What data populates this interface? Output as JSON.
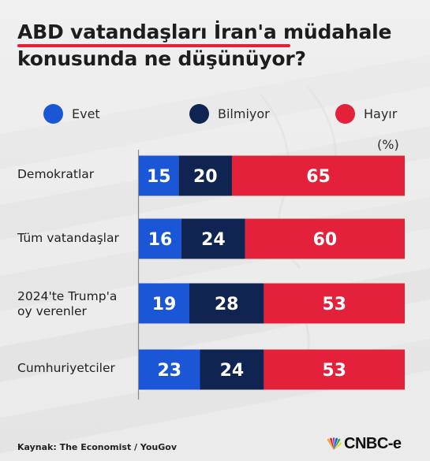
{
  "title": {
    "line1": "ABD vatandaşları İran'a müdahale",
    "line2": "konusunda ne düşünüyor?"
  },
  "legend": [
    {
      "label": "Evet",
      "color": "#1a56d6"
    },
    {
      "label": "Bilmiyor",
      "color": "#0f2450"
    },
    {
      "label": "Hayır",
      "color": "#e4213a"
    }
  ],
  "unit": "(%)",
  "source": "Kaynak: The Economist / YouGov",
  "logo": {
    "text": "CNBC-e",
    "icon": "nbc-peacock-icon"
  },
  "chart_data": {
    "type": "bar",
    "orientation": "horizontal",
    "stacked": true,
    "categories": [
      "Demokratlar",
      "Tüm vatandaşlar",
      "2024'te Trump'a oy verenler",
      "Cumhuriyetciler"
    ],
    "series": [
      {
        "name": "Evet",
        "color": "#1a56d6",
        "values": [
          15,
          16,
          19,
          23
        ]
      },
      {
        "name": "Bilmiyor",
        "color": "#0f2450",
        "values": [
          20,
          24,
          28,
          24
        ]
      },
      {
        "name": "Hayır",
        "color": "#e4213a",
        "values": [
          65,
          60,
          53,
          53
        ]
      }
    ],
    "xlim": [
      0,
      100
    ],
    "grid": false,
    "legend_position": "top"
  }
}
